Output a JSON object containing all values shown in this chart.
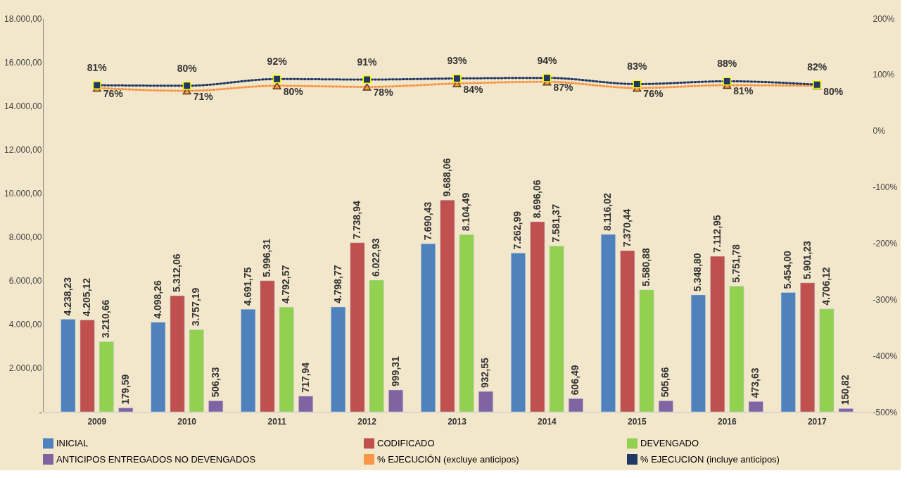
{
  "chart_data": {
    "type": "bar",
    "categories": [
      "2009",
      "2010",
      "2011",
      "2012",
      "2013",
      "2014",
      "2015",
      "2016",
      "2017"
    ],
    "series": [
      {
        "name": "INICIAL",
        "color": "#4f81bd",
        "values": [
          4238.23,
          4098.26,
          4691.75,
          4798.77,
          7690.43,
          7262.99,
          8116.02,
          5348.8,
          5454.0
        ],
        "value_labels": [
          "4.238,23",
          "4.098,26",
          "4.691,75",
          "4.798,77",
          "7.690,43",
          "7.262,99",
          "8.116,02",
          "5.348,80",
          "5.454,00"
        ]
      },
      {
        "name": "CODIFICADO",
        "color": "#c0504d",
        "values": [
          4205.12,
          5312.06,
          5996.31,
          7738.94,
          9688.06,
          8696.06,
          7370.44,
          7112.95,
          5901.23
        ],
        "value_labels": [
          "4.205,12",
          "5.312,06",
          "5.996,31",
          "7.738,94",
          "9.688,06",
          "8.696,06",
          "7.370,44",
          "7.112,95",
          "5.901,23"
        ]
      },
      {
        "name": "DEVENGADO",
        "color": "#92d050",
        "values": [
          3210.66,
          3757.19,
          4792.57,
          6022.93,
          8104.49,
          7581.37,
          5580.88,
          5751.78,
          4706.12
        ],
        "value_labels": [
          "3.210,66",
          "3.757,19",
          "4.792,57",
          "6.022,93",
          "8.104,49",
          "7.581,37",
          "5.580,88",
          "5.751,78",
          "4.706,12"
        ]
      },
      {
        "name": "ANTICIPOS ENTREGADOS NO DEVENGADOS",
        "color": "#8064a2",
        "values": [
          179.59,
          506.33,
          717.94,
          999.31,
          932.55,
          606.49,
          505.66,
          473.63,
          150.82
        ],
        "value_labels": [
          "179,59",
          "506,33",
          "717,94",
          "999,31",
          "932,55",
          "606,49",
          "505,66",
          "473,63",
          "150,82"
        ]
      },
      {
        "name": "% EJECUCIÓN (excluye anticipos)",
        "type": "line",
        "axis": "y2",
        "marker": "triangle",
        "line_style": "dotted",
        "color": "#f79646",
        "values": [
          76,
          71,
          80,
          78,
          84,
          87,
          76,
          81,
          80
        ],
        "value_labels": [
          "76%",
          "71%",
          "80%",
          "78%",
          "84%",
          "87%",
          "76%",
          "81%",
          "80%"
        ]
      },
      {
        "name": "% EJECUCION (incluye anticipos)",
        "type": "line",
        "axis": "y2",
        "marker": "square",
        "line_style": "dotted",
        "color": "#1f3864",
        "values": [
          81,
          80,
          92,
          91,
          93,
          94,
          83,
          88,
          82
        ],
        "value_labels": [
          "81%",
          "80%",
          "92%",
          "91%",
          "93%",
          "94%",
          "83%",
          "88%",
          "82%"
        ]
      }
    ],
    "ylim": [
      0,
      18000
    ],
    "yticks": [
      {
        "value": 0,
        "label": "-"
      },
      {
        "value": 2000,
        "label": "2.000,00"
      },
      {
        "value": 4000,
        "label": "4.000,00"
      },
      {
        "value": 6000,
        "label": "6.000,00"
      },
      {
        "value": 8000,
        "label": "8.000,00"
      },
      {
        "value": 10000,
        "label": "10.000,00"
      },
      {
        "value": 12000,
        "label": "12.000,00"
      },
      {
        "value": 14000,
        "label": "14.000,00"
      },
      {
        "value": 16000,
        "label": "16.000,00"
      },
      {
        "value": 18000,
        "label": "18.000,00"
      }
    ],
    "y2lim": [
      -500,
      200
    ],
    "y2ticks": [
      {
        "value": -500,
        "label": "-500%"
      },
      {
        "value": -400,
        "label": "-400%"
      },
      {
        "value": -300,
        "label": "-300%"
      },
      {
        "value": -200,
        "label": "-200%"
      },
      {
        "value": -100,
        "label": "-100%"
      },
      {
        "value": 0,
        "label": "0%"
      },
      {
        "value": 100,
        "label": "100%"
      },
      {
        "value": 200,
        "label": "200%"
      }
    ],
    "legend": "bottom"
  }
}
